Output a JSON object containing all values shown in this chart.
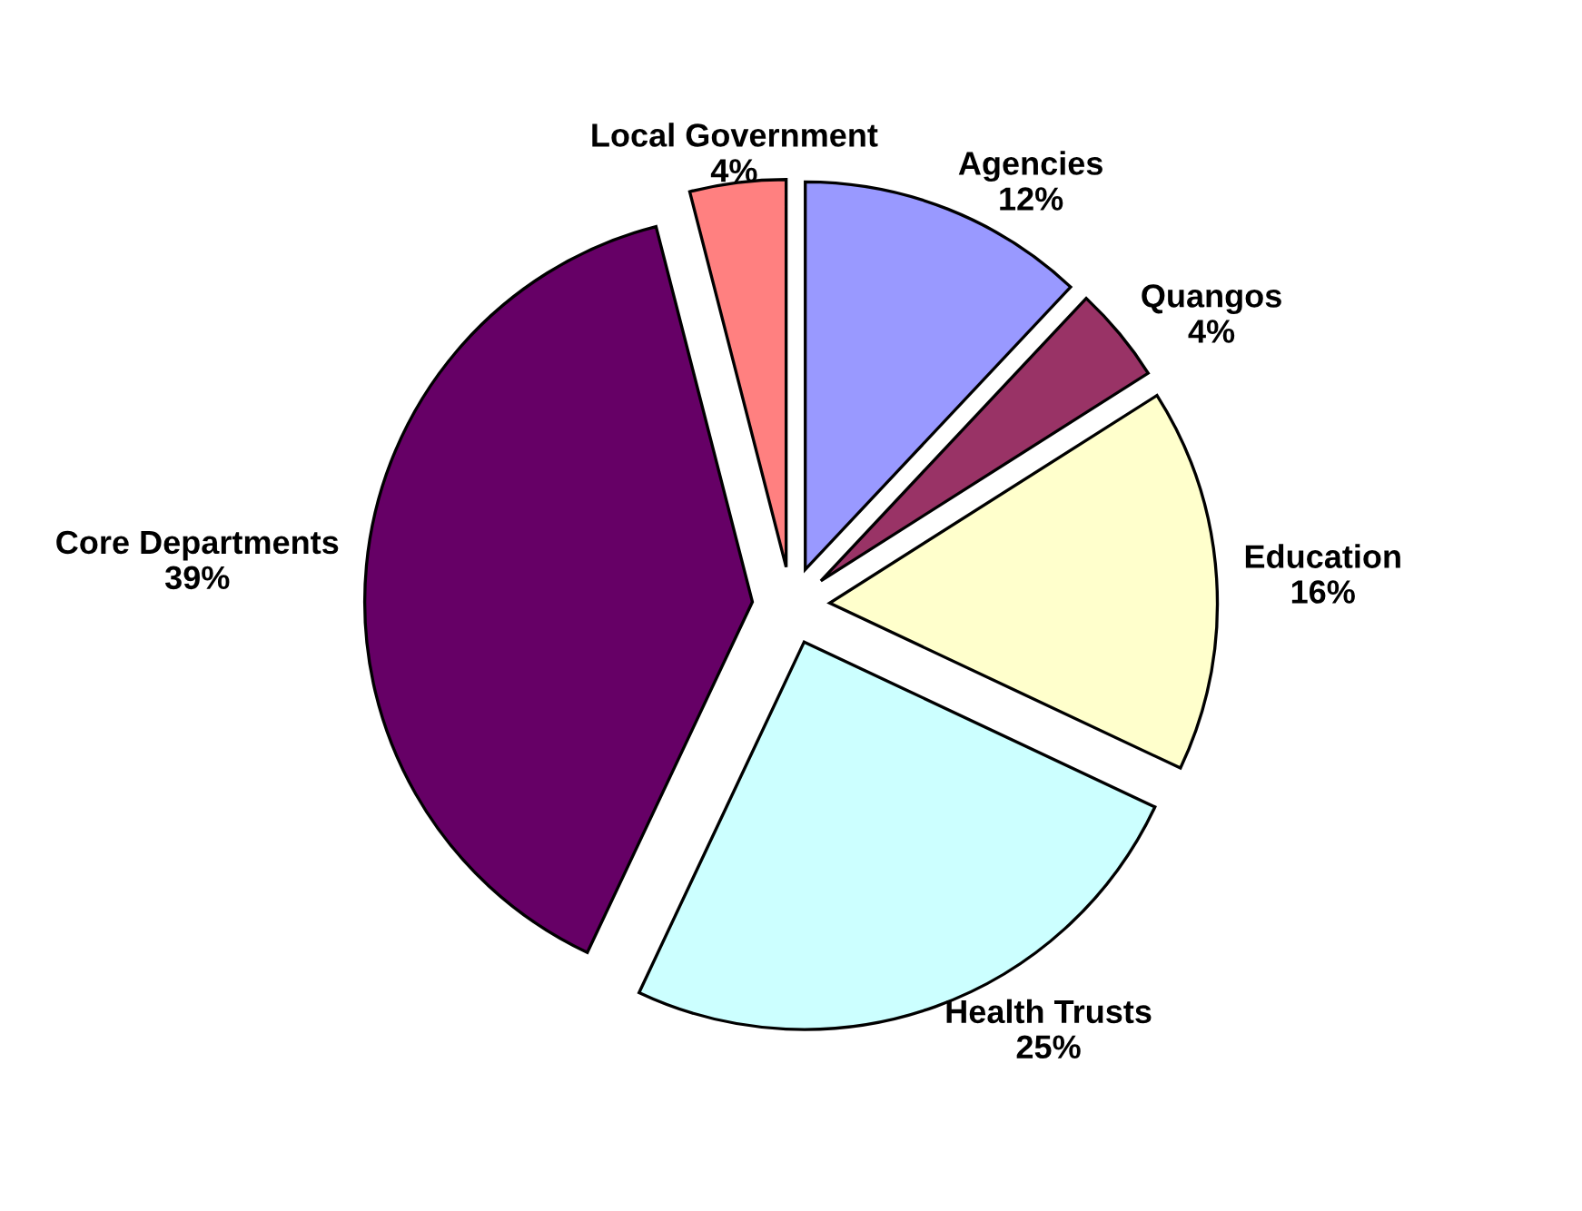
{
  "chart_data": {
    "type": "pie",
    "categories": [
      "Agencies",
      "Quangos",
      "Education",
      "Health Trusts",
      "Core Departments",
      "Local Government"
    ],
    "values": [
      12,
      4,
      16,
      25,
      39,
      4
    ],
    "colors": [
      "#9999ff",
      "#993366",
      "#ffffcc",
      "#ccffff",
      "#660066",
      "#ff8080"
    ],
    "value_labels": [
      "12%",
      "4%",
      "16%",
      "25%",
      "39%",
      "4%"
    ]
  }
}
